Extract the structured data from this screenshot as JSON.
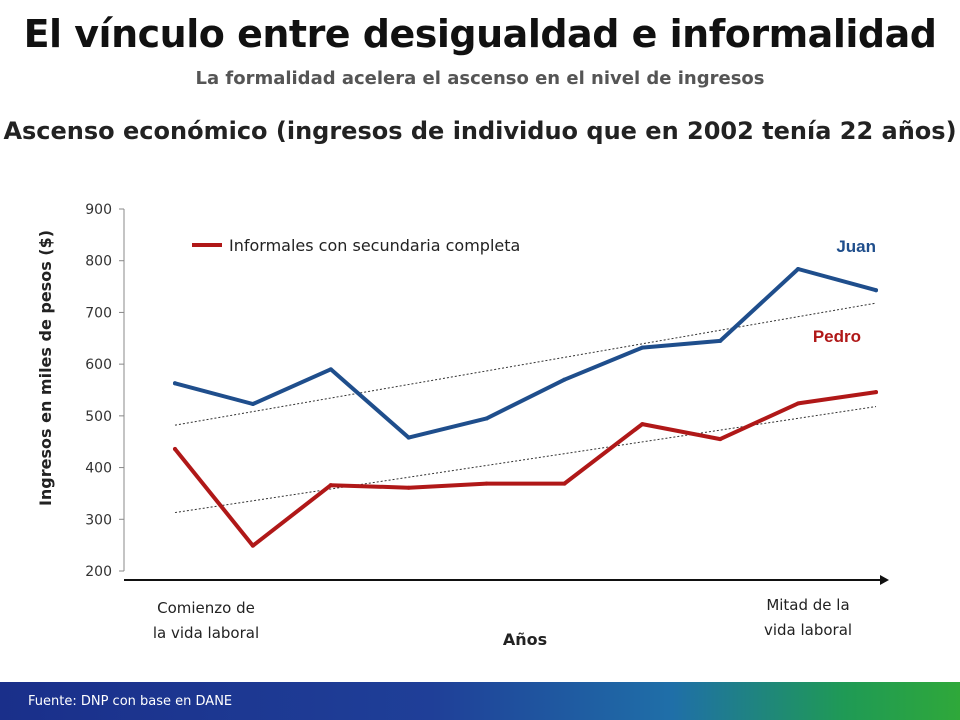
{
  "header": {
    "title": "El vínculo entre desigualdad e informalidad",
    "subtitle": "La formalidad acelera el ascenso en el nivel de ingresos"
  },
  "chart_data": {
    "type": "line",
    "title": "Ascenso económico (ingresos de individuo que en 2002 tenía 22 años)",
    "ylabel": "Ingresos en miles de pesos ($)",
    "xlabel": "Años",
    "x_start_label": "Comienzo de\nla vida laboral",
    "x_end_label": "Mitad de la\nvida laboral",
    "ylim": [
      200,
      900
    ],
    "yticks": [
      200,
      300,
      400,
      500,
      600,
      700,
      800,
      900
    ],
    "legend": {
      "label": "Informales con secundaria completa",
      "color": "#b01818",
      "placement": "top-left"
    },
    "series": [
      {
        "name": "Juan",
        "color": "#1f4e8c",
        "values": [
          563,
          523,
          590,
          458,
          495,
          570,
          632,
          645,
          784,
          743
        ],
        "trend": [
          482,
          718
        ]
      },
      {
        "name": "Pedro",
        "color": "#b01818",
        "values": [
          436,
          249,
          366,
          361,
          369,
          369,
          484,
          455,
          524,
          546
        ],
        "trend": [
          313,
          518
        ]
      }
    ],
    "grid": false
  },
  "footer": {
    "source": "Fuente: DNP con base en DANE"
  }
}
